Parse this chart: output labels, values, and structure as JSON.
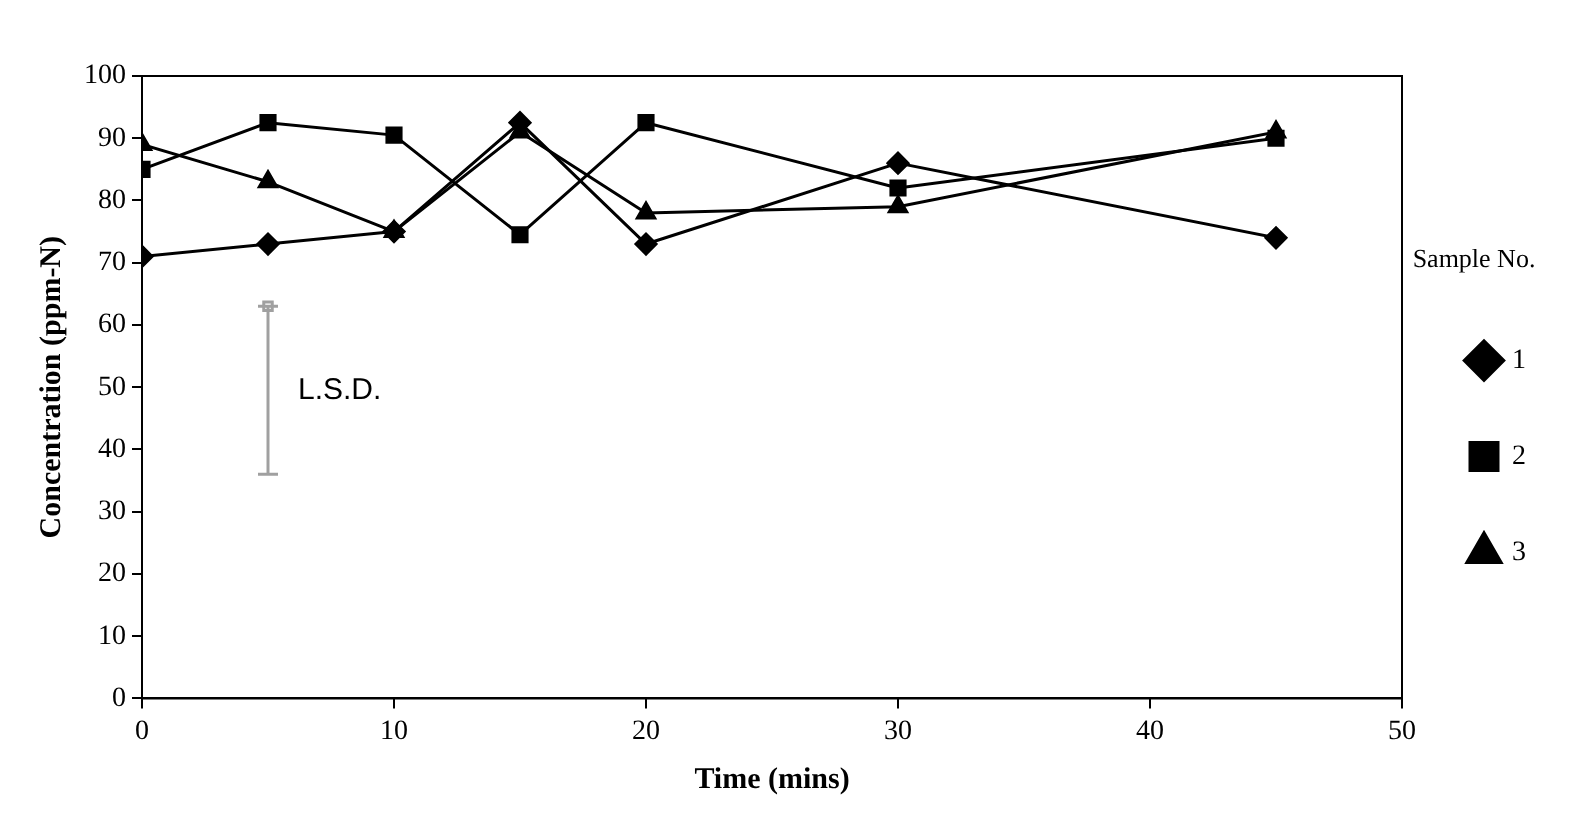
{
  "chart_data": {
    "type": "line",
    "xlabel": "Time (mins)",
    "ylabel": "Concentration (ppm-N)",
    "legend_title": "Sample No.",
    "legend": "right",
    "grid": false,
    "x": [
      0,
      5,
      10,
      15,
      20,
      30,
      45
    ],
    "xlim": [
      0,
      50
    ],
    "xticks": [
      0,
      10,
      20,
      30,
      40,
      50
    ],
    "ylim": [
      0,
      100
    ],
    "yticks": [
      0,
      10,
      20,
      30,
      40,
      50,
      60,
      70,
      80,
      90,
      100
    ],
    "series": [
      {
        "name": "1",
        "color": "#000000",
        "marker": "diamond",
        "values": [
          71,
          73,
          75,
          92.5,
          73,
          86,
          74
        ]
      },
      {
        "name": "2",
        "color": "#000000",
        "marker": "square",
        "values": [
          85,
          92.5,
          90.5,
          74.5,
          92.5,
          82,
          90
        ]
      },
      {
        "name": "3",
        "color": "#000000",
        "marker": "triangle",
        "values": [
          89,
          83,
          75,
          91,
          78,
          79,
          91
        ]
      },
      {
        "type": "scatter",
        "color": "#a0a0a0",
        "marker": "square",
        "x": [
          5
        ],
        "values": [
          63
        ],
        "errors": [
          [
            36,
            63
          ]
        ]
      }
    ],
    "annotations": [
      "L.S.D."
    ]
  }
}
